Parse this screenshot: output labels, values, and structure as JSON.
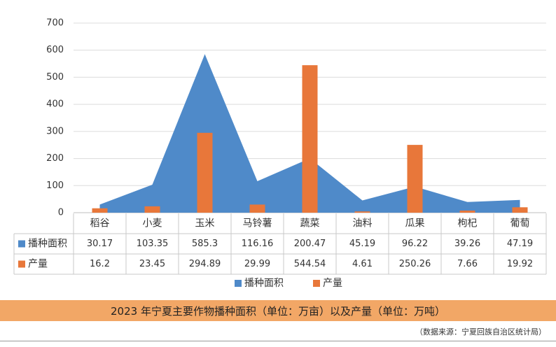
{
  "chart_data": {
    "type": "bar",
    "title": "",
    "xlabel": "",
    "ylabel": "",
    "ylim": [
      0,
      700
    ],
    "yticks": [
      0,
      100,
      200,
      300,
      400,
      500,
      600,
      700
    ],
    "grid": true,
    "legend_position": "bottom",
    "categories": [
      "稻谷",
      "小麦",
      "玉米",
      "马铃薯",
      "蔬菜",
      "油料",
      "瓜果",
      "枸杞",
      "葡萄"
    ],
    "series": [
      {
        "name": "播种面积",
        "render": "area",
        "color": "#4f8ac9",
        "values": [
          "30.17",
          "103.35",
          "585.3",
          "116.16",
          "200.47",
          "45.19",
          "96.22",
          "39.26",
          "47.19"
        ]
      },
      {
        "name": "产量",
        "render": "bar",
        "color": "#e8773a",
        "values": [
          "16.2",
          "23.45",
          "294.89",
          "29.99",
          "544.54",
          "4.61",
          "250.26",
          "7.66",
          "19.92"
        ]
      }
    ]
  },
  "caption": "2023 年宁夏主要作物播种面积（单位：万亩）以及产量（单位：万吨）",
  "source": "（数据来源：宁夏回族自治区统计局）"
}
